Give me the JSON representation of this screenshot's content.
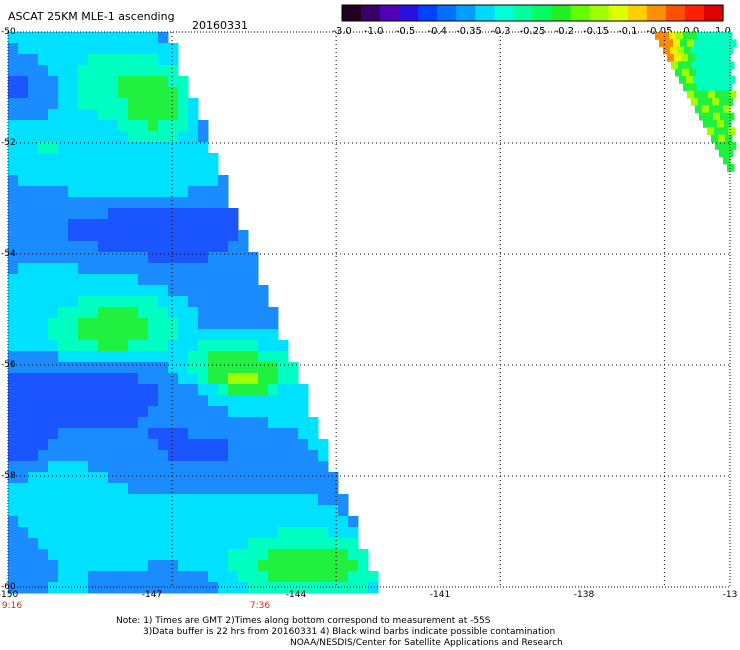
{
  "header": {
    "title": "ASCAT 25KM MLE-1 ascending",
    "date": "20160331"
  },
  "colorbar": {
    "labels": [
      "-3.0",
      "-1.0",
      "-0.5",
      "-0.4",
      "-0.35",
      "-0.3",
      "-0.25",
      "-0.2",
      "-0.15",
      "-0.1",
      "-0.05",
      "0.0",
      "1.0"
    ],
    "colors": [
      "#200020",
      "#3a006a",
      "#5000b8",
      "#2a10e0",
      "#0040ff",
      "#0070ff",
      "#00a0ff",
      "#00d8ff",
      "#00ffd8",
      "#00ffa0",
      "#00ff60",
      "#20f020",
      "#60ff00",
      "#a0ff00",
      "#e0ff00",
      "#ffd000",
      "#ff9000",
      "#ff5000",
      "#ff2000",
      "#e00000"
    ]
  },
  "axes": {
    "lat_labels": [
      "-50",
      "-52",
      "-54",
      "-56",
      "-58",
      "-60"
    ],
    "lon_labels": [
      "-150",
      "-147",
      "-144",
      "-141",
      "-138",
      "-13"
    ],
    "time_labels": [
      "9:16",
      "7:36"
    ]
  },
  "notes": {
    "line1": "Note: 1) Times are GMT 2)Times along bottom correspond to measurement at -55S",
    "line2": "3)Data buffer is 22 hrs from 20160331 4) Black wind barbs indicate possible contamination",
    "line3": "NOAA/NESDIS/Center for Satellite Applications and Research"
  },
  "swath_colors": {
    "deep_blue": "#1a2ae0",
    "blue": "#1a55ff",
    "light_blue": "#1a8cff",
    "cyan": "#00e0ff",
    "aqua": "#00ffc0",
    "green": "#20f040",
    "yellow_green": "#a0ff00",
    "yellow": "#f0f000",
    "orange": "#ff8800"
  }
}
